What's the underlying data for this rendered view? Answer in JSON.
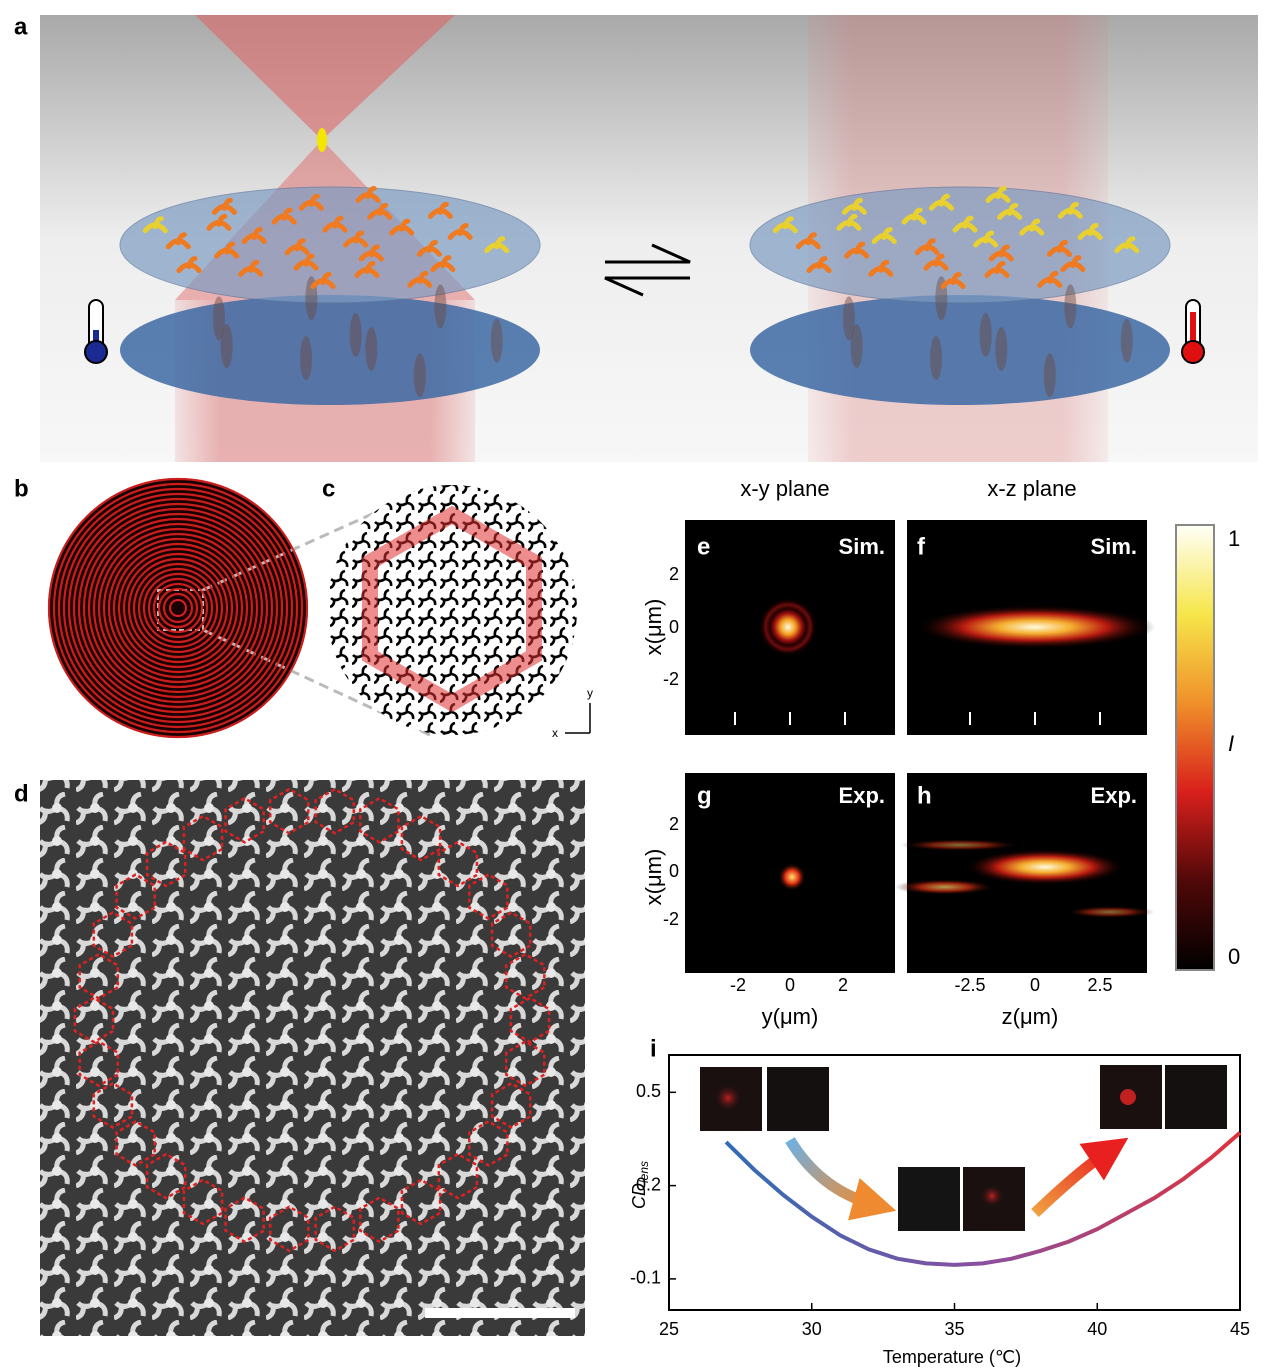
{
  "figure": {
    "panel_labels": [
      "a",
      "b",
      "c",
      "d",
      "e",
      "f",
      "g",
      "h",
      "i"
    ],
    "column_titles": [
      "x-y plane",
      "x-z plane"
    ],
    "heatmap_tags": [
      "Sim.",
      "Sim.",
      "Exp.",
      "Exp."
    ],
    "row_axis_label": "x(μm)",
    "row_ticks": [
      "2",
      "0",
      "-2"
    ],
    "xy_axis_label": "y(μm)",
    "xy_ticks": [
      "-2",
      "0",
      "2"
    ],
    "xz_axis_label": "z(μm)",
    "xz_ticks": [
      "-2.5",
      "0",
      "2.5"
    ],
    "colorbar": {
      "max": "1",
      "label": "I",
      "min": "0"
    },
    "panel_c_axes": [
      "y",
      "x"
    ]
  },
  "chart_data": {
    "type": "line",
    "x_label": "Temperature (℃)",
    "y_label": "CD",
    "y_label_sub": "lens",
    "x": [
      27,
      28,
      29,
      30,
      31,
      32,
      33,
      34,
      35,
      36,
      37,
      38,
      39,
      40,
      41,
      42,
      43,
      44,
      45
    ],
    "series": [
      {
        "colors": [
          "#2f6db5",
          "#8a4fa0",
          "#e0313a"
        ],
        "values": [
          0.34,
          0.25,
          0.17,
          0.1,
          0.04,
          -0.005,
          -0.035,
          -0.05,
          -0.055,
          -0.05,
          -0.035,
          -0.01,
          0.02,
          0.06,
          0.11,
          0.16,
          0.22,
          0.29,
          0.37
        ]
      }
    ],
    "xlim": [
      25,
      45
    ],
    "xticks": [
      25,
      30,
      35,
      40,
      45
    ],
    "ylim": [
      -0.2,
      0.62
    ],
    "yticks": [
      -0.1,
      0.2,
      0.5
    ]
  }
}
